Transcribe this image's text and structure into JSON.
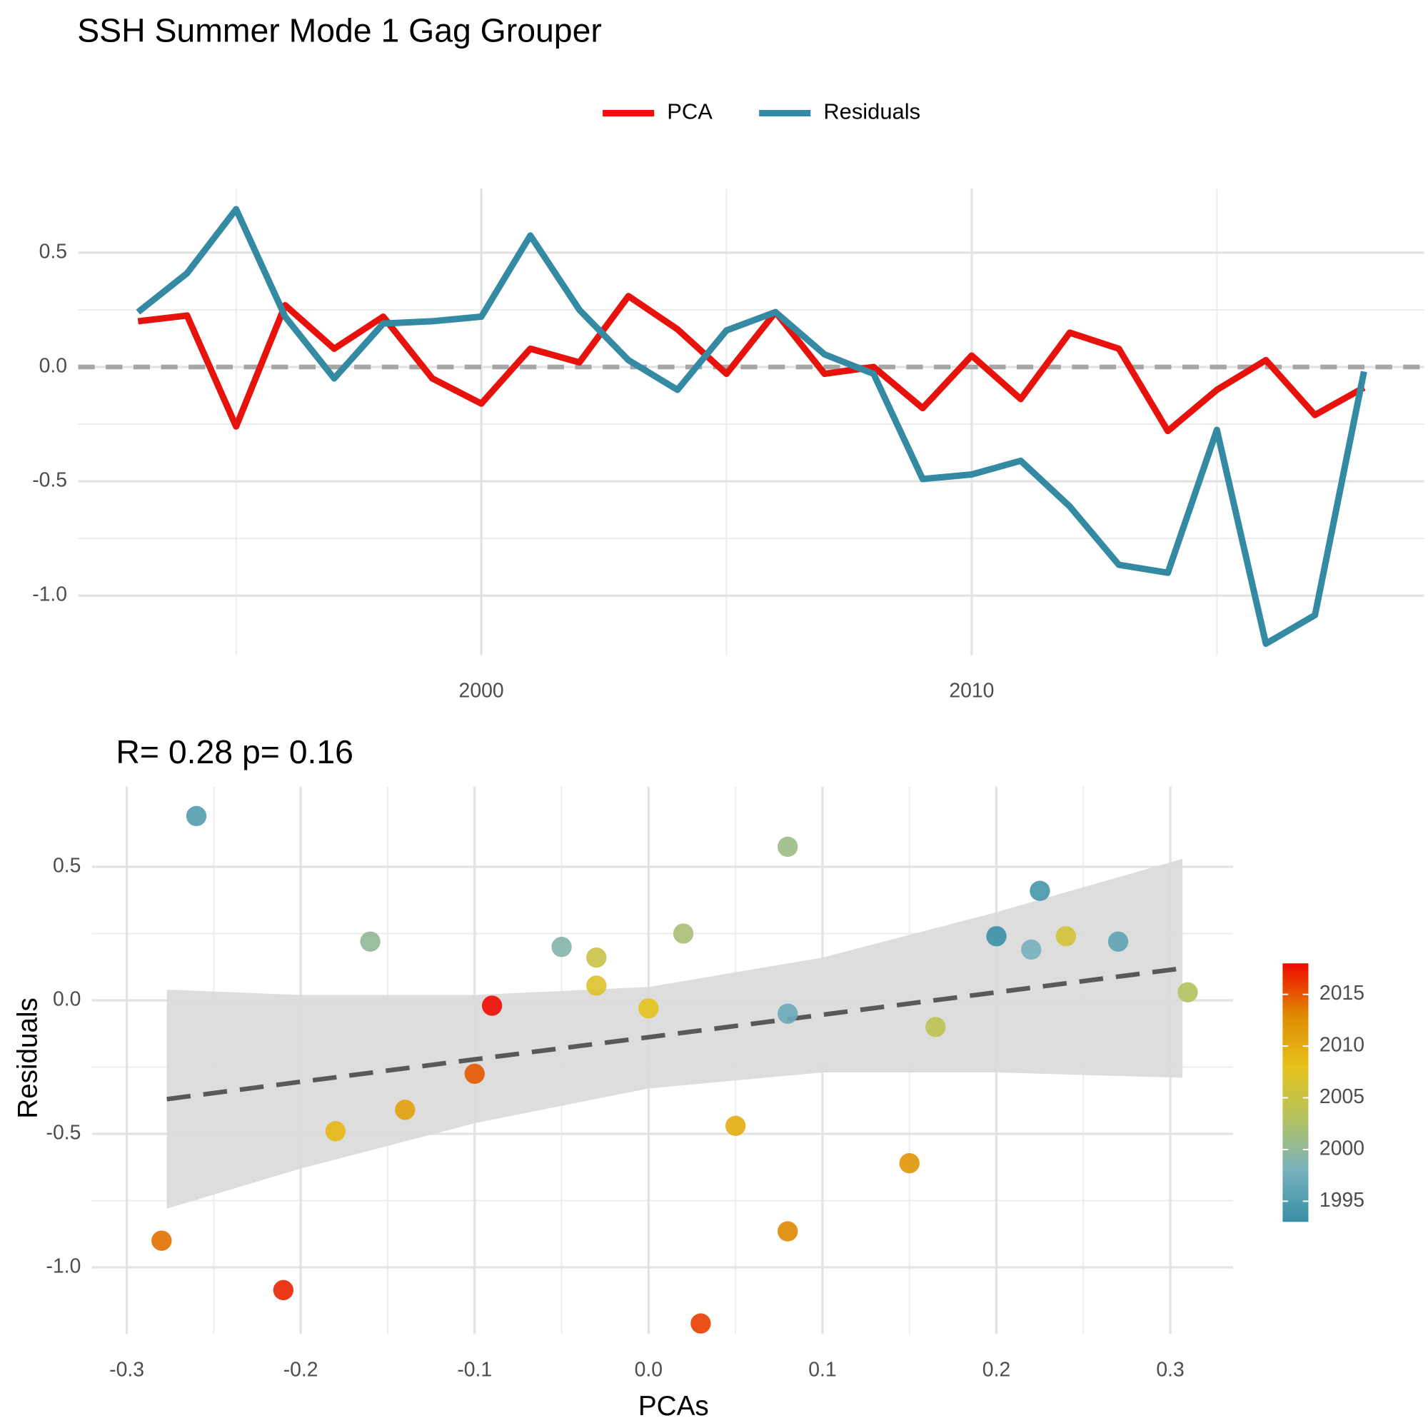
{
  "chart_data": [
    {
      "type": "line",
      "title": "SSH Summer Mode 1 Gag Grouper",
      "x": [
        1993,
        1994,
        1995,
        1996,
        1997,
        1998,
        1999,
        2000,
        2001,
        2002,
        2003,
        2004,
        2005,
        2006,
        2007,
        2008,
        2009,
        2010,
        2011,
        2012,
        2013,
        2014,
        2015,
        2016,
        2017,
        2018
      ],
      "series": [
        {
          "name": "PCA",
          "color": "#e8120c",
          "values": [
            0.2,
            0.225,
            -0.26,
            0.27,
            0.08,
            0.22,
            -0.05,
            -0.16,
            0.08,
            0.02,
            0.31,
            0.165,
            -0.03,
            0.24,
            -0.03,
            0.0,
            -0.18,
            0.05,
            -0.14,
            0.15,
            0.08,
            -0.28,
            -0.1,
            0.03,
            -0.21,
            -0.09
          ]
        },
        {
          "name": "Residuals",
          "color": "#348aa3",
          "values": [
            0.24,
            0.41,
            0.69,
            0.22,
            -0.05,
            0.19,
            0.2,
            0.22,
            0.575,
            0.25,
            0.03,
            -0.1,
            0.16,
            0.24,
            0.055,
            -0.03,
            -0.49,
            -0.47,
            -0.41,
            -0.61,
            -0.865,
            -0.9,
            -0.275,
            -1.21,
            -1.085,
            -0.02
          ]
        }
      ],
      "xlim": [
        1991.78,
        2019.23
      ],
      "xticks": [
        2000,
        2010
      ],
      "xminor": [
        1995,
        2005,
        2015
      ],
      "ylim": [
        -1.26,
        0.78
      ],
      "yticks": [
        {
          "value": -1.0,
          "label": "-1.0"
        },
        -0.5,
        {
          "value": 0.0,
          "label": "0.0"
        },
        0.5
      ],
      "yminor": [
        -0.75,
        -0.25,
        0.25
      ],
      "hline": 0,
      "grid": true,
      "legend": "top"
    },
    {
      "type": "scatter",
      "title": "R= 0.28  p= 0.16",
      "x_label": "PCAs",
      "y_label": "Residuals",
      "x": [
        0.2,
        0.225,
        -0.26,
        0.27,
        0.08,
        0.22,
        -0.05,
        -0.16,
        0.08,
        0.02,
        0.31,
        0.165,
        -0.03,
        0.24,
        -0.03,
        0.0,
        -0.18,
        0.05,
        -0.14,
        0.15,
        0.08,
        -0.28,
        -0.1,
        0.03,
        -0.21,
        -0.09
      ],
      "y": [
        0.24,
        0.41,
        0.69,
        0.22,
        -0.05,
        0.19,
        0.2,
        0.22,
        0.575,
        0.25,
        0.03,
        -0.1,
        0.16,
        0.24,
        0.055,
        -0.03,
        -0.49,
        -0.47,
        -0.41,
        -0.61,
        -0.865,
        -0.9,
        -0.275,
        -1.21,
        -1.085,
        -0.02
      ],
      "color_values": [
        1993,
        1994,
        1995,
        1996,
        1997,
        1998,
        1999,
        2000,
        2001,
        2002,
        2003,
        2004,
        2005,
        2006,
        2007,
        2008,
        2009,
        2010,
        2011,
        2012,
        2013,
        2014,
        2015,
        2016,
        2017,
        2018
      ],
      "palette": [
        "#3890a6",
        "#78b0bd",
        "#b4c260",
        "#e6c21c",
        "#df8a00",
        "#ee0a00"
      ],
      "color_lim": [
        1993,
        2018
      ],
      "colorbar_ticks": [
        1995,
        2000,
        2005,
        2010,
        2015
      ],
      "fit": {
        "x": [
          -0.277,
          -0.2,
          -0.1,
          0,
          0.1,
          0.2,
          0.307
        ],
        "y": [
          -0.37,
          -0.305,
          -0.221,
          -0.138,
          -0.054,
          0.03,
          0.12
        ],
        "lower": [
          -0.78,
          -0.63,
          -0.46,
          -0.33,
          -0.27,
          -0.27,
          -0.29
        ],
        "upper": [
          0.04,
          0.02,
          0.02,
          0.05,
          0.16,
          0.33,
          0.53
        ]
      },
      "xlim": [
        -0.32,
        0.336
      ],
      "xticks": [
        -0.3,
        -0.2,
        -0.1,
        {
          "value": 0.0,
          "label": "0.0"
        },
        0.1,
        0.2,
        0.3
      ],
      "xminor": [
        -0.25,
        -0.15,
        -0.05,
        0.05,
        0.15,
        0.25
      ],
      "ylim": [
        -1.25,
        0.8
      ],
      "yticks": [
        {
          "value": -1.0,
          "label": "-1.0"
        },
        -0.5,
        {
          "value": 0.0,
          "label": "0.0"
        },
        0.5
      ],
      "yminor": [
        -0.75,
        -0.25,
        0.25
      ],
      "grid": true
    }
  ]
}
